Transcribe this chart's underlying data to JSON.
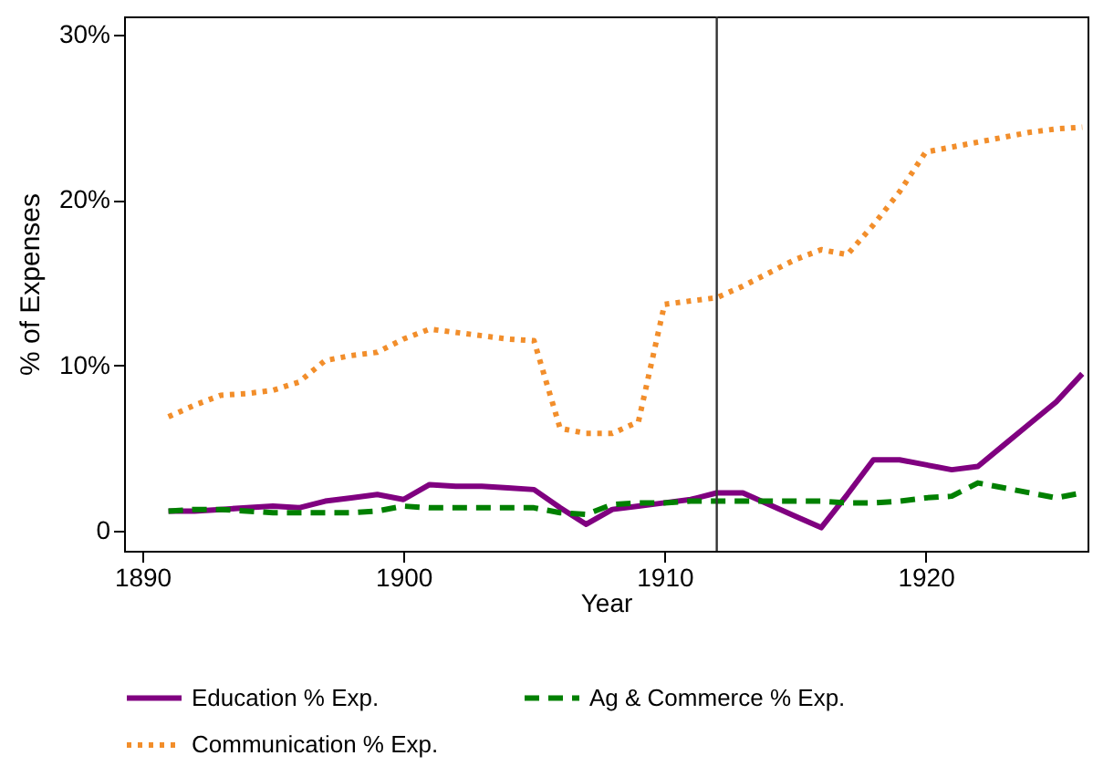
{
  "chart_data": {
    "type": "line",
    "xlabel": "Year",
    "ylabel": "% of Expenses",
    "x": [
      1891,
      1892,
      1893,
      1894,
      1895,
      1896,
      1897,
      1898,
      1899,
      1900,
      1901,
      1902,
      1903,
      1904,
      1905,
      1906,
      1907,
      1908,
      1909,
      1910,
      1911,
      1912,
      1913,
      1914,
      1915,
      1916,
      1917,
      1918,
      1919,
      1920,
      1921,
      1922,
      1923,
      1924,
      1925,
      1926
    ],
    "series": [
      {
        "name": "Education % Exp.",
        "color": "#800080",
        "line_style": "solid",
        "values": [
          1.2,
          1.2,
          1.3,
          1.4,
          1.5,
          1.4,
          1.8,
          2.0,
          2.2,
          1.9,
          2.8,
          2.7,
          2.7,
          2.6,
          2.5,
          1.4,
          0.4,
          1.3,
          1.5,
          1.7,
          1.9,
          2.3,
          2.3,
          1.6,
          0.9,
          0.2,
          2.2,
          4.3,
          4.3,
          4.0,
          3.7,
          3.9,
          5.2,
          6.5,
          7.8,
          9.5
        ]
      },
      {
        "name": "Ag & Commerce % Exp.",
        "color": "#008000",
        "line_style": "dashed",
        "values": [
          1.2,
          1.3,
          1.3,
          1.2,
          1.1,
          1.1,
          1.1,
          1.1,
          1.2,
          1.5,
          1.4,
          1.4,
          1.4,
          1.4,
          1.4,
          1.1,
          1.0,
          1.6,
          1.7,
          1.7,
          1.8,
          1.8,
          1.8,
          1.8,
          1.8,
          1.8,
          1.7,
          1.7,
          1.8,
          2.0,
          2.1,
          2.9,
          2.6,
          2.3,
          2.0,
          2.3
        ]
      },
      {
        "name": "Communication % Exp.",
        "color": "#f28e2b",
        "line_style": "dotted",
        "values": [
          6.9,
          7.6,
          8.2,
          8.3,
          8.5,
          9.0,
          10.3,
          10.6,
          10.8,
          11.6,
          12.2,
          12.0,
          11.8,
          11.6,
          11.5,
          6.2,
          5.9,
          5.9,
          6.6,
          13.7,
          13.9,
          14.1,
          14.8,
          15.6,
          16.4,
          17.0,
          16.7,
          18.5,
          20.5,
          22.9,
          23.2,
          23.5,
          23.8,
          24.1,
          24.3,
          24.4
        ]
      }
    ],
    "xlim": [
      1889.3,
      1926.2
    ],
    "xticks": [
      1890,
      1900,
      1910,
      1920
    ],
    "ylim": [
      -1.2,
      31.1
    ],
    "yticks": [
      0,
      {
        "value": 10,
        "label": "10%"
      },
      {
        "value": 20,
        "label": "20%"
      },
      {
        "value": 30,
        "label": "30%"
      }
    ],
    "ref_lines": [
      {
        "axis": "x",
        "value": 1912,
        "color": "#333333"
      }
    ],
    "grid": false,
    "legend": "bottom"
  }
}
